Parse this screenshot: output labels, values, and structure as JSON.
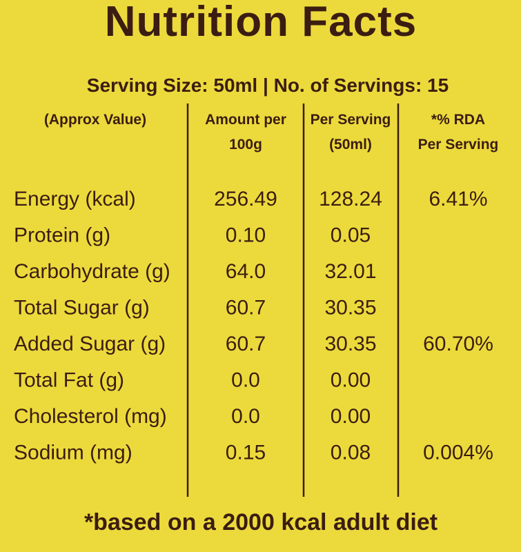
{
  "title": "Nutrition Facts",
  "serving": "Serving Size: 50ml  |  No. of Servings: 15",
  "table": {
    "header": [
      [
        "(Approx Value)"
      ],
      [
        "Amount per",
        "100g"
      ],
      [
        "Per Serving",
        "(50ml)"
      ],
      [
        "*% RDA",
        "Per Serving"
      ]
    ],
    "rows": [
      [
        "Energy (kcal)",
        "256.49",
        "128.24",
        "6.41%"
      ],
      [
        "Protein (g)",
        "0.10",
        "0.05",
        null
      ],
      [
        "Carbohydrate (g)",
        "64.0",
        "32.01",
        null
      ],
      [
        "Total Sugar (g)",
        "60.7",
        "30.35",
        null
      ],
      [
        "Added Sugar (g)",
        "60.7",
        "30.35",
        "60.70%"
      ],
      [
        "Total Fat (g)",
        "0.0",
        "0.00",
        null
      ],
      [
        "Cholesterol (mg)",
        "0.0",
        "0.00",
        null
      ],
      [
        "Sodium (mg)",
        "0.15",
        "0.08",
        "0.004%"
      ]
    ]
  },
  "footnote": "*based on a 2000 kcal adult diet"
}
